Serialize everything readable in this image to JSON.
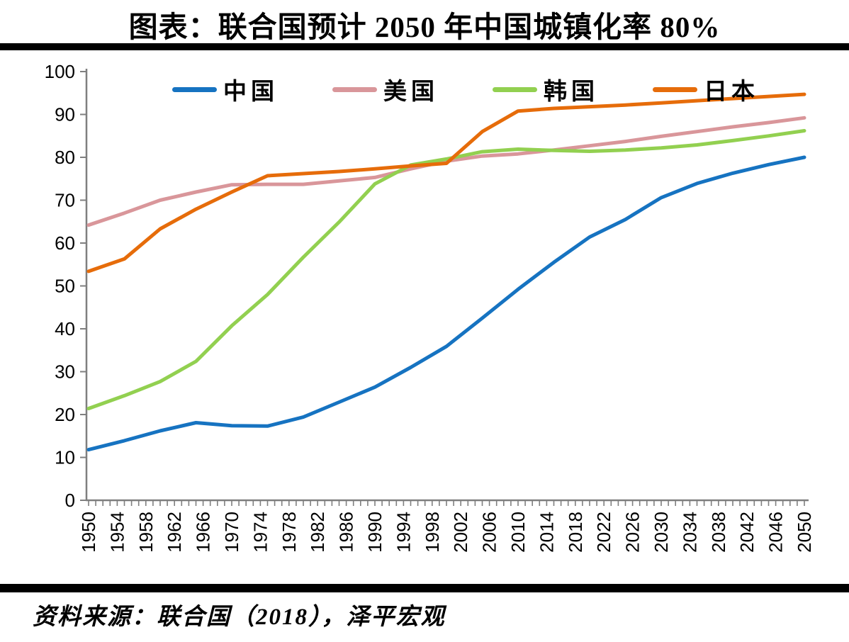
{
  "title": "图表：联合国预计 2050 年中国城镇化率 80%",
  "footer": {
    "source": "资料来源：联合国（2018），泽平宏观"
  },
  "chart_data": {
    "type": "line",
    "title": "图表：联合国预计 2050 年中国城镇化率 80%",
    "xlabel": "",
    "ylabel": "",
    "xlim": [
      1950,
      2050
    ],
    "ylim": [
      0,
      100
    ],
    "ytick_step": 10,
    "ytick_labels": [
      "0",
      "10",
      "20",
      "30",
      "40",
      "50",
      "60",
      "70",
      "80",
      "90",
      "100"
    ],
    "xtick_minor_step_years": 1,
    "xtick_label_step_years": 4,
    "xtick_labels": [
      "1950",
      "1954",
      "1958",
      "1962",
      "1966",
      "1970",
      "1974",
      "1978",
      "1982",
      "1986",
      "1990",
      "1994",
      "1998",
      "2002",
      "2006",
      "2010",
      "2014",
      "2018",
      "2022",
      "2026",
      "2030",
      "2034",
      "2038",
      "2042",
      "2046",
      "2050"
    ],
    "grid": false,
    "legend_position": "top",
    "x": [
      1950,
      1955,
      1960,
      1965,
      1970,
      1975,
      1980,
      1985,
      1990,
      1995,
      2000,
      2005,
      2010,
      2015,
      2020,
      2025,
      2030,
      2035,
      2040,
      2045,
      2050
    ],
    "series": [
      {
        "name": "中国",
        "color": "#1673C1",
        "values": [
          11.8,
          13.9,
          16.2,
          18.1,
          17.4,
          17.3,
          19.4,
          22.9,
          26.4,
          31.0,
          35.9,
          42.5,
          49.2,
          55.5,
          61.4,
          65.5,
          70.6,
          73.9,
          76.3,
          78.3,
          80.0
        ]
      },
      {
        "name": "美国",
        "color": "#D9969A",
        "values": [
          64.2,
          67.0,
          70.0,
          71.9,
          73.6,
          73.7,
          73.7,
          74.5,
          75.3,
          77.3,
          79.1,
          80.3,
          80.8,
          81.7,
          82.7,
          83.7,
          84.9,
          86.0,
          87.1,
          88.1,
          89.2
        ]
      },
      {
        "name": "韩国",
        "color": "#92D050",
        "values": [
          21.4,
          24.4,
          27.7,
          32.4,
          40.7,
          48.0,
          56.7,
          64.9,
          73.8,
          78.2,
          79.6,
          81.3,
          81.9,
          81.6,
          81.4,
          81.7,
          82.2,
          82.9,
          83.9,
          85.0,
          86.2
        ]
      },
      {
        "name": "日本",
        "color": "#E66C0A",
        "values": [
          53.4,
          56.3,
          63.3,
          67.9,
          71.9,
          75.7,
          76.2,
          76.7,
          77.3,
          78.0,
          78.6,
          86.0,
          90.8,
          91.4,
          91.8,
          92.2,
          92.7,
          93.2,
          93.7,
          94.2,
          94.7
        ]
      }
    ],
    "axis_color": "#7F7F7F"
  }
}
